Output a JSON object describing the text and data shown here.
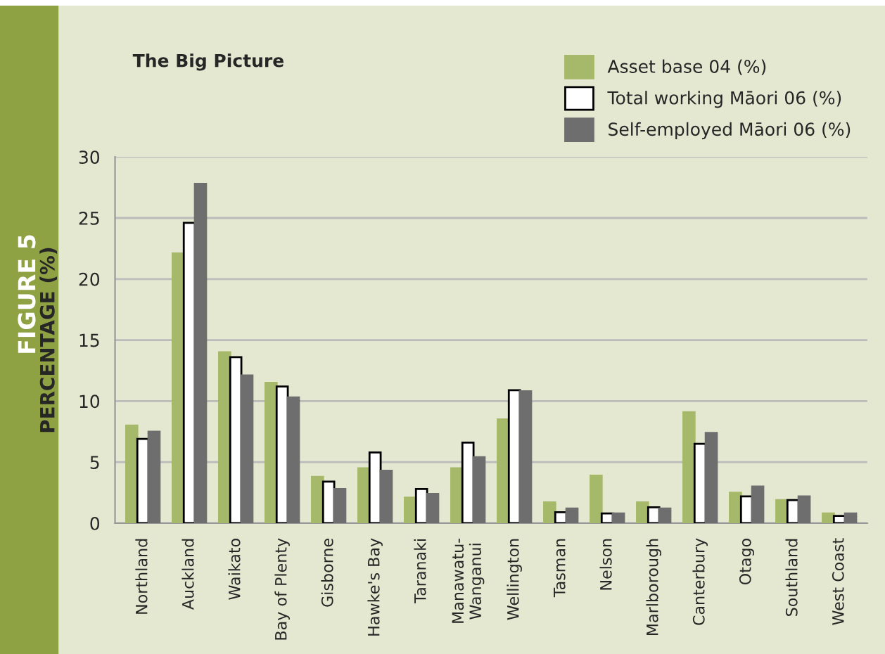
{
  "chart_data": {
    "type": "bar",
    "title": "The Big Picture",
    "ylabel": "PERCENTAGE (%)",
    "annotations": [
      "FIGURE 5"
    ],
    "categories": [
      "Northland",
      "Auckland",
      "Waikato",
      "Bay of Plenty",
      "Gisborne",
      "Hawke's Bay",
      "Taranaki",
      "Manawatu-\nWanganui",
      "Wellington",
      "Tasman",
      "Nelson",
      "Marlborough",
      "Canterbury",
      "Otago",
      "Southland",
      "West Coast"
    ],
    "series": [
      {
        "name": "Asset base 04 (%)",
        "color": "#a6b96a",
        "values": [
          8.0,
          22.1,
          14.0,
          11.5,
          3.8,
          4.5,
          2.1,
          4.5,
          8.5,
          1.7,
          3.9,
          1.7,
          9.1,
          2.5,
          1.9,
          0.8
        ]
      },
      {
        "name": "Total working Māori 06 (%)",
        "color": "#ffffff",
        "values": [
          6.9,
          24.6,
          13.6,
          11.2,
          3.4,
          5.8,
          2.8,
          6.6,
          10.9,
          0.9,
          0.8,
          1.3,
          6.5,
          2.2,
          1.9,
          0.6
        ]
      },
      {
        "name": "Self-employed Māori 06 (%)",
        "color": "#6e6e6e",
        "values": [
          7.5,
          27.8,
          12.1,
          10.3,
          2.8,
          4.3,
          2.4,
          5.4,
          10.8,
          1.2,
          0.8,
          1.2,
          7.4,
          3.0,
          2.2,
          0.8
        ]
      }
    ],
    "ylim": [
      0,
      30
    ],
    "yticks": [
      0,
      5,
      10,
      15,
      20,
      25,
      30
    ],
    "grid": "y",
    "legend": "top right"
  }
}
